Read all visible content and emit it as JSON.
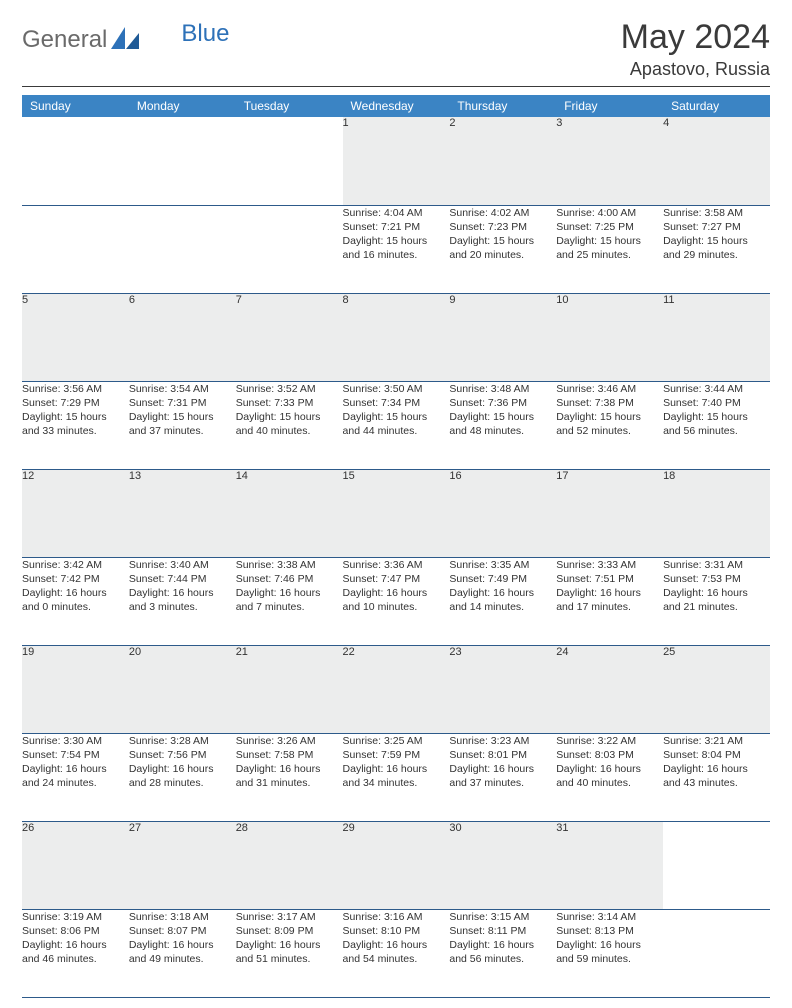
{
  "brand": {
    "part1": "General",
    "part2": "Blue"
  },
  "title": "May 2024",
  "location": "Apastovo, Russia",
  "colors": {
    "header_bg": "#3b84c4",
    "header_text": "#ffffff",
    "daynum_bg": "#eceded",
    "rule": "#2d5a8a",
    "brand_gray": "#6a6a6a",
    "brand_blue": "#2d71b8"
  },
  "weekdays": [
    "Sunday",
    "Monday",
    "Tuesday",
    "Wednesday",
    "Thursday",
    "Friday",
    "Saturday"
  ],
  "weeks": [
    [
      {
        "n": "",
        "sunrise": "",
        "sunset": "",
        "day1": "",
        "day2": ""
      },
      {
        "n": "",
        "sunrise": "",
        "sunset": "",
        "day1": "",
        "day2": ""
      },
      {
        "n": "",
        "sunrise": "",
        "sunset": "",
        "day1": "",
        "day2": ""
      },
      {
        "n": "1",
        "sunrise": "Sunrise: 4:04 AM",
        "sunset": "Sunset: 7:21 PM",
        "day1": "Daylight: 15 hours",
        "day2": "and 16 minutes."
      },
      {
        "n": "2",
        "sunrise": "Sunrise: 4:02 AM",
        "sunset": "Sunset: 7:23 PM",
        "day1": "Daylight: 15 hours",
        "day2": "and 20 minutes."
      },
      {
        "n": "3",
        "sunrise": "Sunrise: 4:00 AM",
        "sunset": "Sunset: 7:25 PM",
        "day1": "Daylight: 15 hours",
        "day2": "and 25 minutes."
      },
      {
        "n": "4",
        "sunrise": "Sunrise: 3:58 AM",
        "sunset": "Sunset: 7:27 PM",
        "day1": "Daylight: 15 hours",
        "day2": "and 29 minutes."
      }
    ],
    [
      {
        "n": "5",
        "sunrise": "Sunrise: 3:56 AM",
        "sunset": "Sunset: 7:29 PM",
        "day1": "Daylight: 15 hours",
        "day2": "and 33 minutes."
      },
      {
        "n": "6",
        "sunrise": "Sunrise: 3:54 AM",
        "sunset": "Sunset: 7:31 PM",
        "day1": "Daylight: 15 hours",
        "day2": "and 37 minutes."
      },
      {
        "n": "7",
        "sunrise": "Sunrise: 3:52 AM",
        "sunset": "Sunset: 7:33 PM",
        "day1": "Daylight: 15 hours",
        "day2": "and 40 minutes."
      },
      {
        "n": "8",
        "sunrise": "Sunrise: 3:50 AM",
        "sunset": "Sunset: 7:34 PM",
        "day1": "Daylight: 15 hours",
        "day2": "and 44 minutes."
      },
      {
        "n": "9",
        "sunrise": "Sunrise: 3:48 AM",
        "sunset": "Sunset: 7:36 PM",
        "day1": "Daylight: 15 hours",
        "day2": "and 48 minutes."
      },
      {
        "n": "10",
        "sunrise": "Sunrise: 3:46 AM",
        "sunset": "Sunset: 7:38 PM",
        "day1": "Daylight: 15 hours",
        "day2": "and 52 minutes."
      },
      {
        "n": "11",
        "sunrise": "Sunrise: 3:44 AM",
        "sunset": "Sunset: 7:40 PM",
        "day1": "Daylight: 15 hours",
        "day2": "and 56 minutes."
      }
    ],
    [
      {
        "n": "12",
        "sunrise": "Sunrise: 3:42 AM",
        "sunset": "Sunset: 7:42 PM",
        "day1": "Daylight: 16 hours",
        "day2": "and 0 minutes."
      },
      {
        "n": "13",
        "sunrise": "Sunrise: 3:40 AM",
        "sunset": "Sunset: 7:44 PM",
        "day1": "Daylight: 16 hours",
        "day2": "and 3 minutes."
      },
      {
        "n": "14",
        "sunrise": "Sunrise: 3:38 AM",
        "sunset": "Sunset: 7:46 PM",
        "day1": "Daylight: 16 hours",
        "day2": "and 7 minutes."
      },
      {
        "n": "15",
        "sunrise": "Sunrise: 3:36 AM",
        "sunset": "Sunset: 7:47 PM",
        "day1": "Daylight: 16 hours",
        "day2": "and 10 minutes."
      },
      {
        "n": "16",
        "sunrise": "Sunrise: 3:35 AM",
        "sunset": "Sunset: 7:49 PM",
        "day1": "Daylight: 16 hours",
        "day2": "and 14 minutes."
      },
      {
        "n": "17",
        "sunrise": "Sunrise: 3:33 AM",
        "sunset": "Sunset: 7:51 PM",
        "day1": "Daylight: 16 hours",
        "day2": "and 17 minutes."
      },
      {
        "n": "18",
        "sunrise": "Sunrise: 3:31 AM",
        "sunset": "Sunset: 7:53 PM",
        "day1": "Daylight: 16 hours",
        "day2": "and 21 minutes."
      }
    ],
    [
      {
        "n": "19",
        "sunrise": "Sunrise: 3:30 AM",
        "sunset": "Sunset: 7:54 PM",
        "day1": "Daylight: 16 hours",
        "day2": "and 24 minutes."
      },
      {
        "n": "20",
        "sunrise": "Sunrise: 3:28 AM",
        "sunset": "Sunset: 7:56 PM",
        "day1": "Daylight: 16 hours",
        "day2": "and 28 minutes."
      },
      {
        "n": "21",
        "sunrise": "Sunrise: 3:26 AM",
        "sunset": "Sunset: 7:58 PM",
        "day1": "Daylight: 16 hours",
        "day2": "and 31 minutes."
      },
      {
        "n": "22",
        "sunrise": "Sunrise: 3:25 AM",
        "sunset": "Sunset: 7:59 PM",
        "day1": "Daylight: 16 hours",
        "day2": "and 34 minutes."
      },
      {
        "n": "23",
        "sunrise": "Sunrise: 3:23 AM",
        "sunset": "Sunset: 8:01 PM",
        "day1": "Daylight: 16 hours",
        "day2": "and 37 minutes."
      },
      {
        "n": "24",
        "sunrise": "Sunrise: 3:22 AM",
        "sunset": "Sunset: 8:03 PM",
        "day1": "Daylight: 16 hours",
        "day2": "and 40 minutes."
      },
      {
        "n": "25",
        "sunrise": "Sunrise: 3:21 AM",
        "sunset": "Sunset: 8:04 PM",
        "day1": "Daylight: 16 hours",
        "day2": "and 43 minutes."
      }
    ],
    [
      {
        "n": "26",
        "sunrise": "Sunrise: 3:19 AM",
        "sunset": "Sunset: 8:06 PM",
        "day1": "Daylight: 16 hours",
        "day2": "and 46 minutes."
      },
      {
        "n": "27",
        "sunrise": "Sunrise: 3:18 AM",
        "sunset": "Sunset: 8:07 PM",
        "day1": "Daylight: 16 hours",
        "day2": "and 49 minutes."
      },
      {
        "n": "28",
        "sunrise": "Sunrise: 3:17 AM",
        "sunset": "Sunset: 8:09 PM",
        "day1": "Daylight: 16 hours",
        "day2": "and 51 minutes."
      },
      {
        "n": "29",
        "sunrise": "Sunrise: 3:16 AM",
        "sunset": "Sunset: 8:10 PM",
        "day1": "Daylight: 16 hours",
        "day2": "and 54 minutes."
      },
      {
        "n": "30",
        "sunrise": "Sunrise: 3:15 AM",
        "sunset": "Sunset: 8:11 PM",
        "day1": "Daylight: 16 hours",
        "day2": "and 56 minutes."
      },
      {
        "n": "31",
        "sunrise": "Sunrise: 3:14 AM",
        "sunset": "Sunset: 8:13 PM",
        "day1": "Daylight: 16 hours",
        "day2": "and 59 minutes."
      },
      {
        "n": "",
        "sunrise": "",
        "sunset": "",
        "day1": "",
        "day2": ""
      }
    ]
  ]
}
